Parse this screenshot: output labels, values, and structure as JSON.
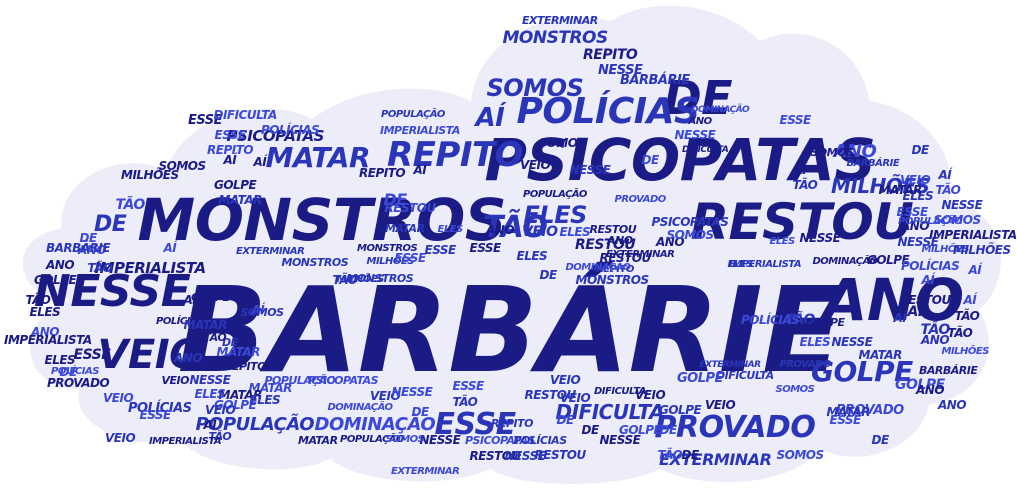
{
  "colors": {
    "cloud_fill": "#ecedf9",
    "cloud_outline": "#ffffff",
    "word_dark": "#1b1b86",
    "word_mid": "#2a35b8",
    "word_light": "#3c49d6"
  },
  "words": [
    "BARBÁRIE",
    "ANO",
    "MONSTROS",
    "PSICOPATAS",
    "RESTOU",
    "NESSE",
    "DE",
    "POLÍCIAS",
    "REPITO",
    "MATAR",
    "VEIO",
    "ESSE",
    "PROVADO",
    "GOLPE",
    "ELES",
    "TÃO",
    "AÍ",
    "SOMOS",
    "IMPERIALISTA",
    "POPULAÇÃO",
    "DOMINAÇÃO",
    "DIFICULTA",
    "EXTERMINAR",
    "MILHÕES",
    "PSICOPATAS",
    "MONSTROS",
    "ANO",
    "ESSE",
    "NESSE",
    "MATAR",
    "REPITO",
    "POLÍCIAS",
    "GOLPE",
    "VEIO",
    "EXTERMINAR",
    "DIFICULTA",
    "RESTOU",
    "BARBÁRIE",
    "PROVADO",
    "SOMOS",
    "DE",
    "TÃO",
    "AÍ",
    "ELES",
    "IMPERIALISTA",
    "POPULAÇÃO",
    "MILHÕES",
    "DOMINAÇÃO",
    "AÍ",
    "TÃO",
    "DE",
    "ESSE",
    "VEIO",
    "ANO",
    "NESSE",
    "MONSTROS",
    "POLÍCIAS",
    "GOLPE",
    "MATAR",
    "ELES",
    "AÍ",
    "TÃO",
    "DE",
    "RESTOU",
    "VEIO",
    "ESSE",
    "ANO",
    "NESSE",
    "SOMOS",
    "AÍ",
    "DE",
    "ELES",
    "TÃO",
    "REPITO",
    "PSICOPATAS",
    "EXTERMINAR",
    "DIFICULTA",
    "MILHÕES",
    "BARBÁRIE",
    "ANO",
    "ESSE",
    "NESSE",
    "VEIO",
    "GOLPE",
    "MATAR",
    "POLÍCIAS",
    "DE",
    "AÍ",
    "TÃO",
    "ELES",
    "RESTOU",
    "PROVADO",
    "SOMOS",
    "MONSTROS",
    "REPITO",
    "POPULAÇÃO",
    "DOMINAÇÃO",
    "IMPERIALISTA",
    "AÍ",
    "TÃO",
    "DE",
    "ESSE",
    "ANO",
    "NESSE",
    "VEIO",
    "GOLPE",
    "ELES",
    "AÍ",
    "TÃO",
    "MATAR",
    "PSICOPATAS",
    "POLÍCIAS",
    "EXTERMINAR",
    "MILHÕES",
    "DIFICULTA",
    "RESTOU",
    "DE",
    "SOMOS",
    "BARBÁRIE",
    "ESSE",
    "ANO",
    "AÍ",
    "TÃO",
    "VEIO",
    "NESSE",
    "PROVADO",
    "GOLPE",
    "MONSTROS",
    "ELES",
    "REPITO",
    "POPULAÇÃO",
    "DOMINAÇÃO",
    "IMPERIALISTA",
    "MATAR",
    "AÍ",
    "DE",
    "TÃO",
    "ESSE",
    "ANO",
    "VEIO",
    "NESSE",
    "SOMOS",
    "ELES",
    "POLÍCIAS",
    "RESTOU",
    "PSICOPATAS",
    "EXTERMINAR",
    "DIFICULTA",
    "MILHÕES",
    "GOLPE",
    "AÍ",
    "TÃO",
    "DE",
    "ANO",
    "ESSE",
    "MATAR",
    "REPITO",
    "VEIO",
    "NESSE",
    "ELES",
    "BARBÁRIE",
    "MONSTROS",
    "PROVADO",
    "SOMOS",
    "DOMINAÇÃO",
    "POPULAÇÃO",
    "AÍ",
    "TÃO",
    "DE",
    "ESSE",
    "ANO",
    "IMPERIALISTA",
    "GOLPE",
    "VEIO",
    "NESSE",
    "RESTOU",
    "POLÍCIAS",
    "MATAR",
    "ELES",
    "AÍ",
    "TÃO",
    "DE",
    "ESSE",
    "ANO",
    "EXTERMINAR",
    "DIFICULTA",
    "MILHÕES",
    "PSICOPATAS",
    "SOMOS",
    "VEIO",
    "NESSE",
    "REPITO",
    "AÍ",
    "TÃO",
    "DE",
    "ELES",
    "ANO",
    "ESSE",
    "GOLPE",
    "MATAR",
    "BARBÁRIE",
    "PROVADO",
    "MONSTROS",
    "POLÍCIAS",
    "RESTOU",
    "AÍ",
    "DE",
    "TÃO",
    "VEIO",
    "NESSE",
    "ESSE",
    "ANO",
    "SOMOS",
    "ELES",
    "DOMINAÇÃO",
    "POPULAÇÃO",
    "IMPERIALISTA",
    "MILHÕES",
    "AÍ",
    "TÃO",
    "DE",
    "ESSE",
    "ANO",
    "VEIO",
    "GOLPE",
    "MATAR",
    "NESSE",
    "ELES",
    "AÍ",
    "TÃO",
    "DE",
    "ANO",
    "ESSE",
    "RESTOU",
    "VEIO",
    "NESSE",
    "SOMOS",
    "AÍ",
    "TÃO",
    "DE",
    "ELES",
    "ANO",
    "ESSE",
    "GOLPE",
    "MATAR",
    "AÍ",
    "TÃO"
  ]
}
